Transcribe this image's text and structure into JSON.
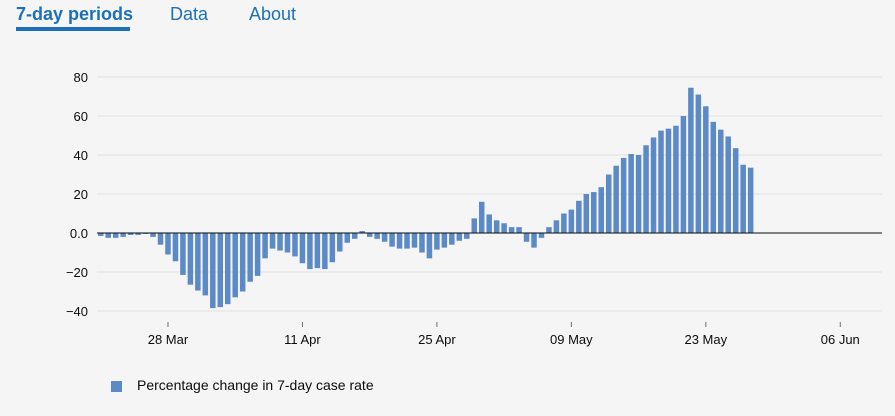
{
  "tabs": [
    {
      "label": "7-day periods",
      "active": true
    },
    {
      "label": "Data",
      "active": false
    },
    {
      "label": "About",
      "active": false
    }
  ],
  "colors": {
    "bar": "#5b8ac7",
    "link": "#1d70b8",
    "zero": "#0b0c0c",
    "grid": "#e1e1e1",
    "tick": "#6e6e6e"
  },
  "legend": {
    "label": "Percentage change in 7-day case rate"
  },
  "chart_data": {
    "type": "bar",
    "title": "",
    "xlabel": "",
    "ylabel": "",
    "ylim": [
      -45,
      85
    ],
    "yticks": [
      {
        "value": 80,
        "label": "80"
      },
      {
        "value": 60,
        "label": "60"
      },
      {
        "value": 40,
        "label": "40"
      },
      {
        "value": 20,
        "label": "20"
      },
      {
        "value": 0,
        "label": "0.0"
      },
      {
        "value": -20,
        "label": "−20"
      },
      {
        "value": -40,
        "label": "−40"
      }
    ],
    "xticks": [
      {
        "index": 9,
        "label": "28 Mar"
      },
      {
        "index": 27,
        "label": "11 Apr"
      },
      {
        "index": 45,
        "label": "25 Apr"
      },
      {
        "index": 63,
        "label": "09 May"
      },
      {
        "index": 81,
        "label": "23 May"
      },
      {
        "index": 99,
        "label": "06 Jun"
      }
    ],
    "series": [
      {
        "name": "Percentage change in 7-day case rate",
        "values": [
          -1.5,
          -2.5,
          -2.5,
          -2,
          -1,
          -1,
          -0.5,
          -2,
          -6,
          -11,
          -14.5,
          -21.5,
          -26.5,
          -29.5,
          -32,
          -38.5,
          -38,
          -36.5,
          -33,
          -30,
          -25,
          -22,
          -13,
          -8,
          -9,
          -10,
          -12,
          -15.5,
          -18.5,
          -18,
          -18.5,
          -15,
          -9.5,
          -5,
          -3,
          1,
          -2,
          -3,
          -4.5,
          -7,
          -8,
          -8,
          -7.5,
          -10,
          -13,
          -8.5,
          -7.5,
          -6,
          -4,
          -3,
          7.5,
          16,
          9.5,
          6.5,
          5,
          3,
          3,
          -4.5,
          -7.5,
          -2.5,
          3,
          6.5,
          10,
          12,
          16.5,
          20,
          21,
          23.5,
          30,
          34.5,
          38.5,
          40.5,
          40,
          45,
          49,
          52.5,
          53.5,
          55,
          60,
          74.5,
          71,
          65,
          57,
          53,
          49.5,
          43.5,
          35,
          33.5
        ]
      }
    ]
  }
}
